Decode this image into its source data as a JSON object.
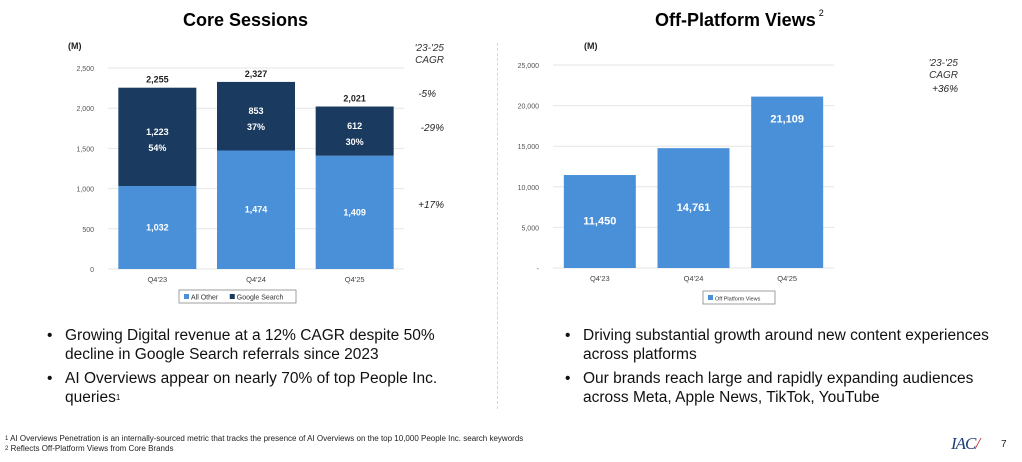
{
  "chart_data": [
    {
      "type": "bar",
      "stacked": true,
      "title": "Core Sessions",
      "unit_label": "(M)",
      "categories": [
        "Q4'23",
        "Q4'24",
        "Q4'25"
      ],
      "series": [
        {
          "name": "All Other",
          "color": "#4a90d9",
          "values": [
            1032,
            1474,
            1409
          ],
          "labels": [
            "1,032",
            "1,474",
            "1,409"
          ]
        },
        {
          "name": "Google Search",
          "color": "#1a3a5f",
          "values": [
            1223,
            853,
            612
          ],
          "labels": [
            "1,223",
            "853",
            "612"
          ],
          "share_labels": [
            "54%",
            "37%",
            "30%"
          ]
        }
      ],
      "totals": [
        2255,
        2327,
        2021
      ],
      "total_labels": [
        "2,255",
        "2,327",
        "2,021"
      ],
      "ylim": [
        0,
        2500
      ],
      "yticks": [
        0,
        500,
        1000,
        1500,
        2000,
        2500
      ],
      "ytick_labels": [
        "0",
        "500",
        "1,000",
        "1,500",
        "2,000",
        "2,500"
      ],
      "grid": true,
      "legend": "bottom",
      "cagr": {
        "header": [
          "'23-'25",
          "CAGR"
        ],
        "total": "-5%",
        "google_search": "-29%",
        "all_other": "+17%"
      }
    },
    {
      "type": "bar",
      "title": "Off-Platform Views",
      "title_footnote": "2",
      "unit_label": "(M)",
      "categories": [
        "Q4'23",
        "Q4'24",
        "Q4'25"
      ],
      "series": [
        {
          "name": "Off Platform Views",
          "color": "#4a90d9",
          "values": [
            11450,
            14761,
            21109
          ],
          "labels": [
            "11,450",
            "14,761",
            "21,109"
          ]
        }
      ],
      "ylim": [
        0,
        25000
      ],
      "yticks": [
        0,
        5000,
        10000,
        15000,
        20000,
        25000
      ],
      "ytick_labels": [
        "-",
        "5,000",
        "10,000",
        "15,000",
        "20,000",
        "25,000"
      ],
      "grid": true,
      "legend": "bottom",
      "cagr": {
        "header": [
          "'23-'25",
          "CAGR"
        ],
        "total": "+36%"
      }
    }
  ],
  "left": {
    "bullets": [
      {
        "text": "Growing Digital revenue at a 12% CAGR despite 50% decline in Google Search referrals since 2023",
        "sup": ""
      },
      {
        "text": "AI Overviews appear on nearly 70% of top People Inc. queries",
        "sup": "1"
      }
    ]
  },
  "right": {
    "bullets": [
      {
        "text": "Driving substantial growth around new content experiences across platforms",
        "sup": ""
      },
      {
        "text": "Our brands reach large and rapidly expanding audiences across Meta, Apple News, TikTok, YouTube",
        "sup": ""
      }
    ]
  },
  "footnotes": [
    {
      "num": "1",
      "text": "AI Overviews Penetration is an internally-sourced metric that tracks the presence of AI Overviews on the top 10,000 People Inc. search keywords"
    },
    {
      "num": "2",
      "text": "Reflects Off-Platform Views from Core Brands"
    }
  ],
  "logo": {
    "text": "IAC",
    "mark": "/"
  },
  "page_number": "7",
  "colors": {
    "light_blue": "#4a90d9",
    "dark_navy": "#1a3a5f"
  }
}
